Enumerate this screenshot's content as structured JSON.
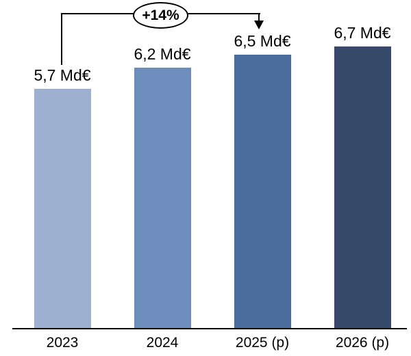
{
  "chart_data": {
    "type": "bar",
    "categories": [
      "2023",
      "2024",
      "2025 (p)",
      "2026 (p)"
    ],
    "values": [
      5.7,
      6.2,
      6.5,
      6.7
    ],
    "value_labels": [
      "5,7 Md€",
      "6,2 Md€",
      "6,5 Md€",
      "6,7 Md€"
    ],
    "bar_colors": [
      "#9DB0CF",
      "#6D8EBC",
      "#4A6C9C",
      "#36496B"
    ],
    "title": "",
    "xlabel": "",
    "ylabel": "",
    "ylim": [
      0,
      7.8
    ],
    "grid": false,
    "legend": false,
    "axis_color": "#000000",
    "annotation": {
      "label": "+14%",
      "from_category": "2023",
      "to_category": "2025 (p)"
    }
  }
}
